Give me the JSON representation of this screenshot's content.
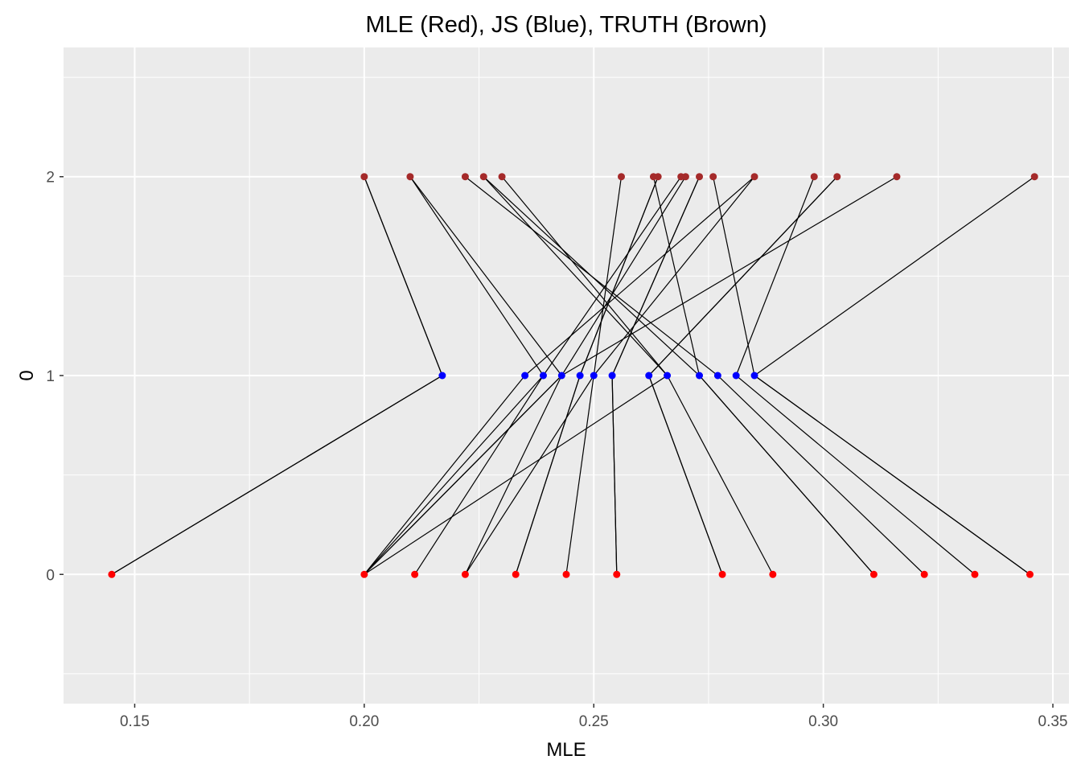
{
  "chart_data": {
    "type": "scatter",
    "title": "MLE (Red), JS (Blue), TRUTH (Brown)",
    "xlabel": "MLE",
    "ylabel": "0",
    "xlim": [
      0.1345,
      0.3535
    ],
    "ylim": [
      -0.65,
      2.65
    ],
    "x_ticks": [
      0.15,
      0.2,
      0.25,
      0.3,
      0.35
    ],
    "x_tick_labels": [
      "0.15",
      "0.20",
      "0.25",
      "0.30",
      "0.35"
    ],
    "y_ticks": [
      0,
      1,
      2
    ],
    "y_tick_labels": [
      "0",
      "1",
      "2"
    ],
    "grid": true,
    "colors": {
      "panel_background": "#ebebeb",
      "grid": "#ffffff",
      "mle": "#ff0000",
      "js": "#0000ff",
      "truth": "#a52a2a",
      "segment": "#000000"
    },
    "series": [
      {
        "level": 0,
        "color": "mle",
        "x": [
          0.145,
          0.2,
          0.211,
          0.222,
          0.233,
          0.244,
          0.255,
          0.278,
          0.289,
          0.311,
          0.322,
          0.333,
          0.345
        ]
      },
      {
        "level": 1,
        "color": "js",
        "x": [
          0.217,
          0.235,
          0.239,
          0.243,
          0.247,
          0.25,
          0.254,
          0.262,
          0.266,
          0.273,
          0.277,
          0.281,
          0.285
        ]
      },
      {
        "level": 2,
        "color": "truth",
        "x": [
          0.2,
          0.21,
          0.222,
          0.226,
          0.23,
          0.256,
          0.263,
          0.264,
          0.269,
          0.27,
          0.273,
          0.276,
          0.285,
          0.298,
          0.303,
          0.316,
          0.346
        ]
      }
    ],
    "segments": [
      [
        0.145,
        0.217,
        0.2
      ],
      [
        0.145,
        0.217,
        0.2
      ],
      [
        0.2,
        0.235,
        0.285
      ],
      [
        0.211,
        0.239,
        0.269
      ],
      [
        0.222,
        0.243,
        0.27
      ],
      [
        0.233,
        0.247,
        0.264
      ],
      [
        0.233,
        0.247,
        0.264
      ],
      [
        0.244,
        0.25,
        0.256
      ],
      [
        0.255,
        0.254,
        0.273
      ],
      [
        0.255,
        0.254,
        0.273
      ],
      [
        0.278,
        0.262,
        0.303
      ],
      [
        0.278,
        0.262,
        0.303
      ],
      [
        0.289,
        0.266,
        0.23
      ],
      [
        0.311,
        0.273,
        0.226
      ],
      [
        0.311,
        0.273,
        0.263
      ],
      [
        0.322,
        0.277,
        0.222
      ],
      [
        0.333,
        0.281,
        0.298
      ],
      [
        0.345,
        0.285,
        0.346
      ],
      [
        0.345,
        0.285,
        0.276
      ],
      [
        0.2,
        0.243,
        0.316
      ],
      [
        0.2,
        0.239,
        0.21
      ],
      [
        0.222,
        0.25,
        0.285
      ],
      [
        0.2,
        0.266,
        0.226
      ],
      [
        0.2,
        0.243,
        0.21
      ]
    ]
  }
}
